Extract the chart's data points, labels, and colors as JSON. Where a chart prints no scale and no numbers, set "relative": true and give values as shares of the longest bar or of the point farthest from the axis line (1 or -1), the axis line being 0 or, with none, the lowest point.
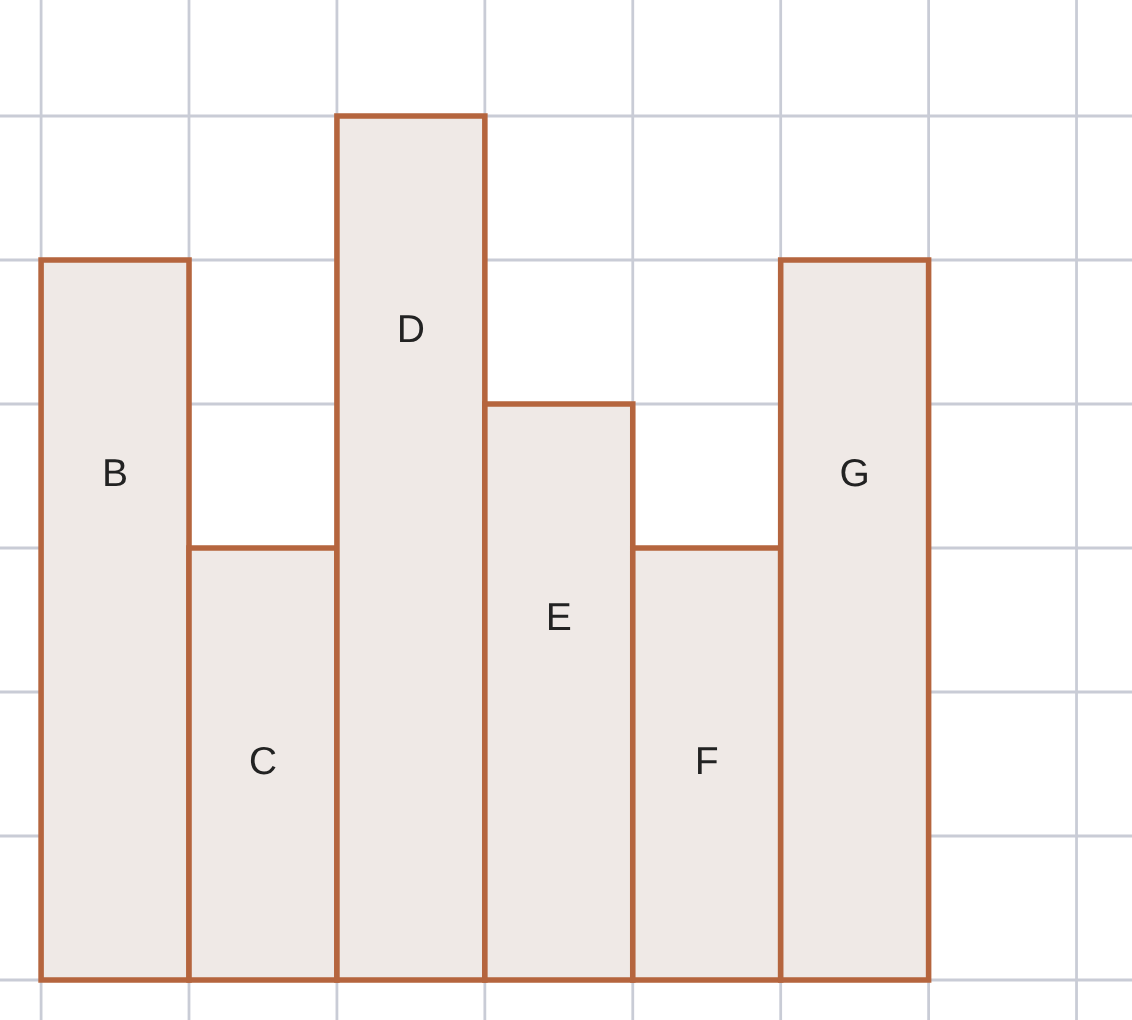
{
  "chart_data": {
    "type": "bar",
    "relative": true,
    "categories": [
      "B",
      "C",
      "D",
      "E",
      "F",
      "G"
    ],
    "values": [
      0.8333,
      0.5,
      1,
      0.6667,
      0.5,
      0.8333
    ],
    "color": "#efe9e6",
    "grid": true
  }
}
